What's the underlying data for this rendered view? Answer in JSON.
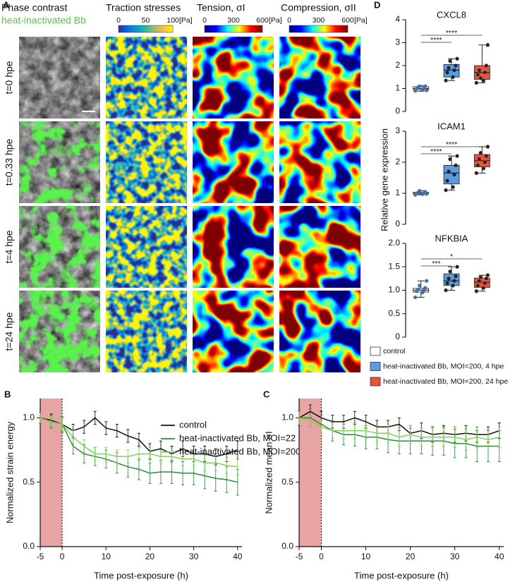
{
  "panel_a": {
    "panel_label": "A",
    "column_titles": [
      "Phase contrast",
      "Traction stresses",
      "Tension, σI",
      "Compression, σII"
    ],
    "subtitle": "heat-inactivated Bb",
    "colorbars": [
      {
        "ticks": [
          0,
          50,
          100
        ],
        "unit": "[Pa]"
      },
      {
        "ticks": [
          0,
          300,
          600
        ],
        "unit": "[Pa]"
      },
      {
        "ticks": [
          0,
          300,
          600
        ],
        "unit": "[Pa]"
      }
    ],
    "row_labels": [
      "t=0 hpe",
      "t=0.33 hpe",
      "t=4 hpe",
      "t=24 hpe"
    ]
  },
  "panel_d": {
    "panel_label": "D",
    "ylabel": "Relative gene expression"
  },
  "chart_data": [
    {
      "type": "line",
      "panel_label": "B",
      "xlabel": "Time post-exposure (h)",
      "ylabel": "Normalized strain energy",
      "x": [
        -5,
        -2.5,
        0,
        2.5,
        5,
        7.5,
        10,
        12.5,
        15,
        17.5,
        20,
        22.5,
        25,
        27.5,
        30,
        32.5,
        35,
        37.5,
        40
      ],
      "xlim": [
        -5,
        41
      ],
      "xticks": [
        -5,
        0,
        10,
        20,
        30,
        40
      ],
      "ylim": [
        0,
        1.15
      ],
      "yticks": [
        {
          "value": 0,
          "label": "0.0"
        },
        0.5,
        {
          "value": 1,
          "label": "1.0"
        }
      ],
      "shaded_region": [
        -5,
        0
      ],
      "shaded_color": "#e8a3a3",
      "marker_line": 0,
      "legend": "upper right",
      "series": [
        {
          "name": "control",
          "color": "#111111",
          "values": [
            1.0,
            0.98,
            0.95,
            0.9,
            0.93,
            1.0,
            0.92,
            0.9,
            0.86,
            0.83,
            0.74,
            0.76,
            0.72,
            0.76,
            0.72,
            0.72,
            0.7,
            0.72,
            0.75
          ],
          "errors": [
            0.04,
            0.05,
            0.05,
            0.05,
            0.05,
            0.05,
            0.05,
            0.05,
            0.05,
            0.05,
            0.06,
            0.06,
            0.06,
            0.06,
            0.06,
            0.06,
            0.06,
            0.06,
            0.07
          ]
        },
        {
          "name": "heat-inactivated Bb, MOI=22",
          "color": "#2e8b3a",
          "values": [
            1.0,
            0.97,
            0.95,
            0.78,
            0.72,
            0.7,
            0.68,
            0.65,
            0.62,
            0.6,
            0.57,
            0.58,
            0.58,
            0.57,
            0.57,
            0.55,
            0.53,
            0.52,
            0.5
          ],
          "errors": [
            0.04,
            0.05,
            0.06,
            0.06,
            0.07,
            0.07,
            0.07,
            0.08,
            0.08,
            0.08,
            0.08,
            0.09,
            0.09,
            0.09,
            0.09,
            0.1,
            0.1,
            0.1,
            0.1
          ]
        },
        {
          "name": "heat-inactivated Bb, MOI=200",
          "color": "#7fd05a",
          "values": [
            1.0,
            0.97,
            0.95,
            0.85,
            0.78,
            0.72,
            0.72,
            0.7,
            0.7,
            0.72,
            0.72,
            0.7,
            0.7,
            0.68,
            0.68,
            0.65,
            0.65,
            0.63,
            0.62
          ],
          "errors": [
            0.04,
            0.04,
            0.05,
            0.05,
            0.05,
            0.05,
            0.05,
            0.05,
            0.05,
            0.05,
            0.05,
            0.05,
            0.05,
            0.05,
            0.05,
            0.06,
            0.06,
            0.06,
            0.06
          ]
        }
      ]
    },
    {
      "type": "line",
      "panel_label": "C",
      "xlabel": "Time post-exposure (h)",
      "ylabel": "Normalized mean σI",
      "x": [
        -5,
        -2.5,
        0,
        2.5,
        5,
        7.5,
        10,
        12.5,
        15,
        17.5,
        20,
        22.5,
        25,
        27.5,
        30,
        32.5,
        35,
        37.5,
        40
      ],
      "xlim": [
        -5,
        41
      ],
      "xticks": [
        -5,
        0,
        10,
        20,
        30,
        40
      ],
      "ylim": [
        0,
        1.15
      ],
      "yticks": [
        {
          "value": 0,
          "label": "0.0"
        },
        0.5,
        {
          "value": 1,
          "label": "1.0"
        }
      ],
      "shaded_region": [
        -5,
        0
      ],
      "shaded_color": "#e8a3a3",
      "marker_line": 0,
      "series": [
        {
          "color": "#111111",
          "values": [
            1.0,
            1.05,
            1.0,
            0.97,
            0.97,
            1.0,
            0.97,
            0.93,
            0.93,
            0.95,
            0.88,
            0.9,
            0.87,
            0.88,
            0.87,
            0.88,
            0.87,
            0.87,
            0.9
          ],
          "errors": [
            0.05,
            0.05,
            0.05,
            0.05,
            0.05,
            0.05,
            0.05,
            0.05,
            0.05,
            0.05,
            0.06,
            0.06,
            0.06,
            0.06,
            0.06,
            0.06,
            0.06,
            0.06,
            0.06
          ]
        },
        {
          "color": "#2e8b3a",
          "values": [
            1.0,
            1.0,
            0.95,
            0.9,
            0.87,
            0.87,
            0.85,
            0.85,
            0.83,
            0.82,
            0.82,
            0.82,
            0.82,
            0.82,
            0.8,
            0.8,
            0.78,
            0.78,
            0.78
          ],
          "errors": [
            0.06,
            0.07,
            0.07,
            0.08,
            0.08,
            0.09,
            0.09,
            0.09,
            0.1,
            0.1,
            0.1,
            0.1,
            0.11,
            0.11,
            0.11,
            0.11,
            0.12,
            0.12,
            0.12
          ]
        },
        {
          "color": "#7fd05a",
          "values": [
            1.0,
            0.98,
            0.93,
            0.9,
            0.9,
            0.9,
            0.9,
            0.88,
            0.88,
            0.85,
            0.87,
            0.85,
            0.85,
            0.85,
            0.85,
            0.83,
            0.85,
            0.83,
            0.85
          ],
          "errors": [
            0.05,
            0.05,
            0.05,
            0.06,
            0.06,
            0.06,
            0.06,
            0.06,
            0.07,
            0.07,
            0.07,
            0.07,
            0.07,
            0.07,
            0.08,
            0.08,
            0.08,
            0.08,
            0.08
          ]
        }
      ]
    },
    {
      "type": "box",
      "title": "CXCL8",
      "ylim": [
        0,
        4
      ],
      "yticks": [
        0,
        1,
        2,
        3,
        4
      ],
      "significance": [
        "****",
        "****"
      ],
      "series": [
        {
          "name": "control",
          "color": "#ffffff",
          "min": 0.88,
          "q1": 0.95,
          "median": 1.0,
          "q3": 1.08,
          "max": 1.12,
          "points": [
            0.9,
            0.95,
            1.0,
            1.0,
            1.05,
            1.1,
            1.1,
            0.92
          ]
        },
        {
          "name": "heat-inactivated Bb, MOI=200, 4 hpe",
          "color": "#5b9be0",
          "min": 1.35,
          "q1": 1.5,
          "median": 1.8,
          "q3": 2.05,
          "max": 2.3,
          "points": [
            1.35,
            1.5,
            1.7,
            1.8,
            1.9,
            2.0,
            2.2,
            2.3
          ]
        },
        {
          "name": "heat-inactivated Bb, MOI=200, 24 hpe",
          "color": "#e5533d",
          "min": 1.25,
          "q1": 1.4,
          "median": 1.7,
          "q3": 2.0,
          "max": 2.9,
          "points": [
            1.25,
            1.35,
            1.6,
            1.7,
            1.8,
            2.0,
            1.45,
            2.9
          ]
        }
      ]
    },
    {
      "type": "box",
      "title": "ICAM1",
      "ylim": [
        0,
        3
      ],
      "yticks": [
        0,
        1,
        2,
        3
      ],
      "significance": [
        "****",
        "****"
      ],
      "series": [
        {
          "color": "#ffffff",
          "min": 0.95,
          "q1": 0.98,
          "median": 1.0,
          "q3": 1.03,
          "max": 1.08,
          "points": [
            0.95,
            0.97,
            1.0,
            1.0,
            1.02,
            1.05,
            1.08,
            0.98
          ]
        },
        {
          "color": "#5b9be0",
          "min": 1.1,
          "q1": 1.3,
          "median": 1.65,
          "q3": 1.9,
          "max": 2.2,
          "points": [
            1.1,
            1.2,
            1.4,
            1.6,
            1.7,
            1.9,
            2.1,
            2.2
          ]
        },
        {
          "color": "#e5533d",
          "min": 1.65,
          "q1": 1.85,
          "median": 2.05,
          "q3": 2.25,
          "max": 2.5,
          "points": [
            1.65,
            1.8,
            1.9,
            2.0,
            2.1,
            2.2,
            2.3,
            2.5
          ]
        }
      ]
    },
    {
      "type": "box",
      "title": "NFKBIA",
      "ylim": [
        0,
        2
      ],
      "yticks": [
        0,
        0.5,
        {
          "value": 1,
          "label": "1.0"
        },
        1.5,
        {
          "value": 2,
          "label": "2.0"
        }
      ],
      "significance": [
        "***",
        "*"
      ],
      "series": [
        {
          "color": "#ffffff",
          "min": 0.85,
          "q1": 0.96,
          "median": 1.0,
          "q3": 1.04,
          "max": 1.2,
          "points": [
            0.85,
            0.95,
            0.98,
            1.0,
            1.02,
            1.05,
            1.1,
            1.2
          ]
        },
        {
          "color": "#5b9be0",
          "min": 1.0,
          "q1": 1.1,
          "median": 1.2,
          "q3": 1.35,
          "max": 1.5,
          "points": [
            1.0,
            1.1,
            1.15,
            1.2,
            1.25,
            1.3,
            1.4,
            1.5
          ]
        },
        {
          "color": "#e5533d",
          "min": 0.98,
          "q1": 1.06,
          "median": 1.17,
          "q3": 1.26,
          "max": 1.32,
          "points": [
            0.98,
            1.05,
            1.1,
            1.15,
            1.2,
            1.25,
            1.28,
            1.32
          ]
        }
      ]
    }
  ]
}
